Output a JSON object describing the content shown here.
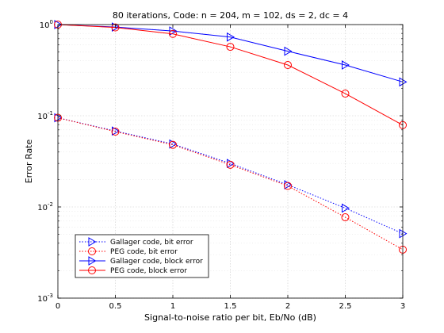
{
  "chart_data": {
    "type": "line",
    "title": "80 iterations, Code: n = 204, m = 102, ds = 2, dc = 4",
    "xlabel": "Signal-to-noise ratio per bit, Eb/No (dB)",
    "ylabel": "Error Rate",
    "x": [
      0,
      0.5,
      1,
      1.5,
      2,
      2.5,
      3
    ],
    "x_ticks": [
      "0",
      "0.5",
      "1",
      "1.5",
      "2",
      "2.5",
      "3"
    ],
    "y_ticks": [
      {
        "base": "10",
        "exp": "0",
        "value": 1
      },
      {
        "base": "10",
        "exp": "-1",
        "value": 0.1
      },
      {
        "base": "10",
        "exp": "-2",
        "value": 0.01
      },
      {
        "base": "10",
        "exp": "-3",
        "value": 0.001
      }
    ],
    "xlim": [
      0,
      3
    ],
    "ylim": [
      0.001,
      1
    ],
    "yscale": "log",
    "grid": true,
    "legend_position": "bottom-left",
    "series": [
      {
        "name": "Gallager code, bit error",
        "color": "#0000ff",
        "line": "dotted",
        "marker": "triangle-right",
        "values": [
          0.095,
          0.068,
          0.049,
          0.03,
          0.0175,
          0.0097,
          0.0051
        ]
      },
      {
        "name": "PEG code, bit error",
        "color": "#ff0000",
        "line": "dotted",
        "marker": "circle",
        "values": [
          0.095,
          0.067,
          0.048,
          0.029,
          0.017,
          0.0077,
          0.0034
        ]
      },
      {
        "name": "Gallager code, block error",
        "color": "#0000ff",
        "line": "solid",
        "marker": "triangle-right",
        "values": [
          1.0,
          0.94,
          0.85,
          0.73,
          0.51,
          0.36,
          0.235
        ]
      },
      {
        "name": "PEG code, block error",
        "color": "#ff0000",
        "line": "solid",
        "marker": "circle",
        "values": [
          1.0,
          0.93,
          0.79,
          0.57,
          0.36,
          0.175,
          0.079
        ]
      }
    ]
  }
}
